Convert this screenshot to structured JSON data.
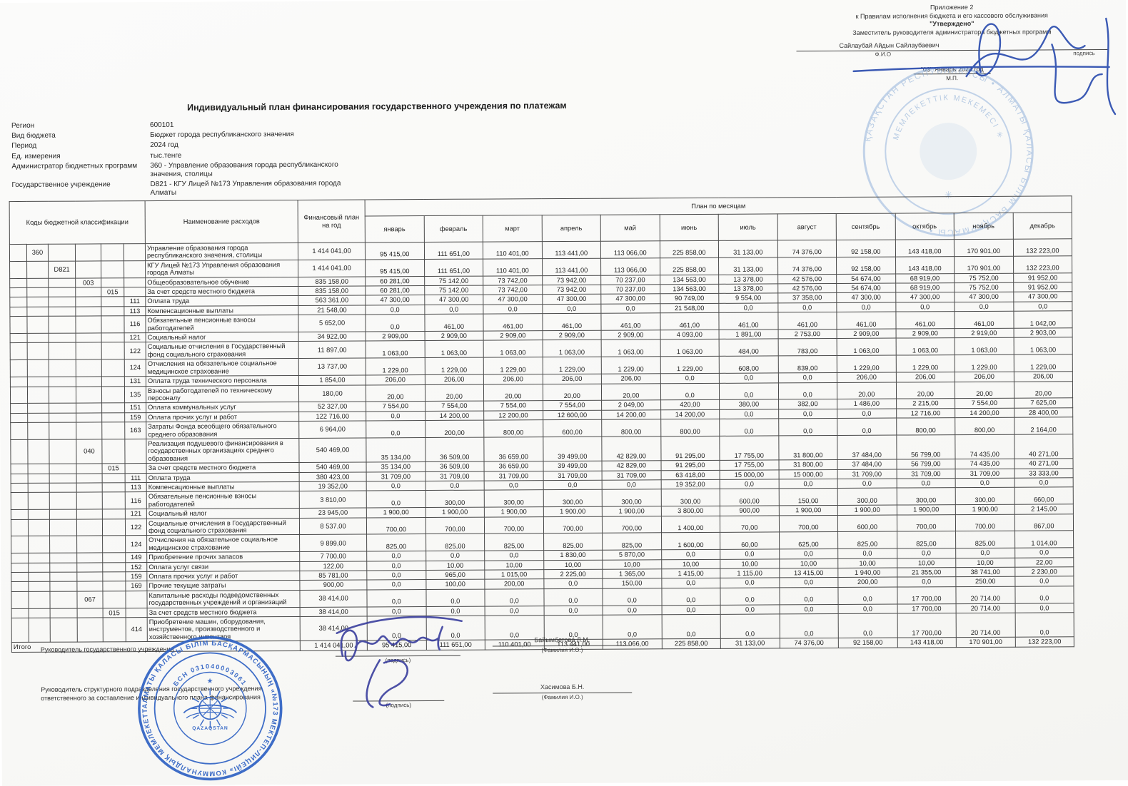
{
  "approval": {
    "appendix_line1": "Приложение 2",
    "appendix_line2": "к Правилам исполнения бюджета и его кассового обслуживания",
    "approved": "\"Утверждено\"",
    "approver_title": "Заместитель руководителя администратора бюджетных программ",
    "approver_name": "Сайлаубай Айдын Сайлаубаевич",
    "fio_caption": "Ф.И.О",
    "sign_caption": "подпись",
    "date_line": "\"03\"  Январь   2024 год",
    "mp": "М.П."
  },
  "title": "Индивидуальный план финансирования государственного учреждения по платежам",
  "meta": {
    "rows": [
      {
        "label": "Регион",
        "value": "600101"
      },
      {
        "label": "Вид бюджета",
        "value": "Бюджет города республиканского значения"
      },
      {
        "label": "Период",
        "value": "2024 год"
      },
      {
        "label": "Ед. измерения",
        "value": "тыс.тенге"
      },
      {
        "label": "Администратор бюджетных программ",
        "value": "360 - Управление образования города республиканского значения, столицы"
      },
      {
        "label": "Государственное учреждение",
        "value": "D821 - КГУ Лицей №173 Управления образования города Алматы"
      }
    ]
  },
  "table": {
    "codes_header": "Коды бюджетной классификации",
    "name_header": "Наименование расходов",
    "annual_header": "Финансовый план на год",
    "months_group_header": "План по месяцам",
    "months": [
      "январь",
      "февраль",
      "март",
      "апрель",
      "май",
      "июнь",
      "июль",
      "август",
      "сентябрь",
      "октябрь",
      "ноябрь",
      "декабрь"
    ],
    "rows": [
      {
        "codes": [
          "",
          "360",
          "",
          "",
          "",
          ""
        ],
        "name": "Управление образования города республиканского значения, столицы",
        "annual": "1 414 041,00",
        "monthly": [
          "95 415,00",
          "111 651,00",
          "110 401,00",
          "113 441,00",
          "113 066,00",
          "225 858,00",
          "31 133,00",
          "74 376,00",
          "92 158,00",
          "143 418,00",
          "170 901,00",
          "132 223,00"
        ]
      },
      {
        "codes": [
          "",
          "",
          "D821",
          "",
          "",
          ""
        ],
        "name": "КГУ Лицей №173 Управления образования города Алматы",
        "annual": "1 414 041,00",
        "monthly": [
          "95 415,00",
          "111 651,00",
          "110 401,00",
          "113 441,00",
          "113 066,00",
          "225 858,00",
          "31 133,00",
          "74 376,00",
          "92 158,00",
          "143 418,00",
          "170 901,00",
          "132 223,00"
        ]
      },
      {
        "codes": [
          "",
          "",
          "",
          "003",
          "",
          ""
        ],
        "name": "Общеобразовательное обучение",
        "annual": "835 158,00",
        "monthly": [
          "60 281,00",
          "75 142,00",
          "73 742,00",
          "73 942,00",
          "70 237,00",
          "134 563,00",
          "13 378,00",
          "42 576,00",
          "54 674,00",
          "68 919,00",
          "75 752,00",
          "91 952,00"
        ]
      },
      {
        "codes": [
          "",
          "",
          "",
          "",
          "015",
          ""
        ],
        "name": "За счет средств местного бюджета",
        "annual": "835 158,00",
        "monthly": [
          "60 281,00",
          "75 142,00",
          "73 742,00",
          "73 942,00",
          "70 237,00",
          "134 563,00",
          "13 378,00",
          "42 576,00",
          "54 674,00",
          "68 919,00",
          "75 752,00",
          "91 952,00"
        ]
      },
      {
        "codes": [
          "",
          "",
          "",
          "",
          "",
          "111"
        ],
        "name": "Оплата труда",
        "annual": "563 361,00",
        "monthly": [
          "47 300,00",
          "47 300,00",
          "47 300,00",
          "47 300,00",
          "47 300,00",
          "90 749,00",
          "9 554,00",
          "37 358,00",
          "47 300,00",
          "47 300,00",
          "47 300,00",
          "47 300,00"
        ]
      },
      {
        "codes": [
          "",
          "",
          "",
          "",
          "",
          "113"
        ],
        "name": "Компенсационные выплаты",
        "annual": "21 548,00",
        "monthly": [
          "0,0",
          "0,0",
          "0,0",
          "0,0",
          "0,0",
          "21 548,00",
          "0,0",
          "0,0",
          "0,0",
          "0,0",
          "0,0",
          "0,0"
        ]
      },
      {
        "codes": [
          "",
          "",
          "",
          "",
          "",
          "116"
        ],
        "name": "Обязательные пенсионные взносы работодателей",
        "annual": "5 652,00",
        "monthly": [
          "0,0",
          "461,00",
          "461,00",
          "461,00",
          "461,00",
          "461,00",
          "461,00",
          "461,00",
          "461,00",
          "461,00",
          "461,00",
          "1 042,00"
        ]
      },
      {
        "codes": [
          "",
          "",
          "",
          "",
          "",
          "121"
        ],
        "name": "Социальный налог",
        "annual": "34 922,00",
        "monthly": [
          "2 909,00",
          "2 909,00",
          "2 909,00",
          "2 909,00",
          "2 909,00",
          "4 093,00",
          "1 891,00",
          "2 753,00",
          "2 909,00",
          "2 909,00",
          "2 919,00",
          "2 903,00"
        ]
      },
      {
        "codes": [
          "",
          "",
          "",
          "",
          "",
          "122"
        ],
        "name": "Социальные отчисления в Государственный фонд социального страхования",
        "annual": "11 897,00",
        "monthly": [
          "1 063,00",
          "1 063,00",
          "1 063,00",
          "1 063,00",
          "1 063,00",
          "1 063,00",
          "484,00",
          "783,00",
          "1 063,00",
          "1 063,00",
          "1 063,00",
          "1 063,00"
        ]
      },
      {
        "codes": [
          "",
          "",
          "",
          "",
          "",
          "124"
        ],
        "name": "Отчисления на обязательное социальное медицинское страхование",
        "annual": "13 737,00",
        "monthly": [
          "1 229,00",
          "1 229,00",
          "1 229,00",
          "1 229,00",
          "1 229,00",
          "1 229,00",
          "608,00",
          "839,00",
          "1 229,00",
          "1 229,00",
          "1 229,00",
          "1 229,00"
        ]
      },
      {
        "codes": [
          "",
          "",
          "",
          "",
          "",
          "131"
        ],
        "name": "Оплата труда технического персонала",
        "annual": "1 854,00",
        "monthly": [
          "206,00",
          "206,00",
          "206,00",
          "206,00",
          "206,00",
          "0,0",
          "0,0",
          "0,0",
          "206,00",
          "206,00",
          "206,00",
          "206,00"
        ]
      },
      {
        "codes": [
          "",
          "",
          "",
          "",
          "",
          "135"
        ],
        "name": "Взносы работодателей по техническому персоналу",
        "annual": "180,00",
        "monthly": [
          "20,00",
          "20,00",
          "20,00",
          "20,00",
          "20,00",
          "0,0",
          "0,0",
          "0,0",
          "20,00",
          "20,00",
          "20,00",
          "20,00"
        ]
      },
      {
        "codes": [
          "",
          "",
          "",
          "",
          "",
          "151"
        ],
        "name": "Оплата коммунальных услуг",
        "annual": "52 327,00",
        "monthly": [
          "7 554,00",
          "7 554,00",
          "7 554,00",
          "7 554,00",
          "2 049,00",
          "420,00",
          "380,00",
          "382,00",
          "1 486,00",
          "2 215,00",
          "7 554,00",
          "7 625,00"
        ]
      },
      {
        "codes": [
          "",
          "",
          "",
          "",
          "",
          "159"
        ],
        "name": "Оплата прочих услуг и работ",
        "annual": "122 716,00",
        "monthly": [
          "0,0",
          "14 200,00",
          "12 200,00",
          "12 600,00",
          "14 200,00",
          "14 200,00",
          "0,0",
          "0,0",
          "0,0",
          "12 716,00",
          "14 200,00",
          "28 400,00"
        ]
      },
      {
        "codes": [
          "",
          "",
          "",
          "",
          "",
          "163"
        ],
        "name": "Затраты Фонда всеобщего обязательного среднего образования",
        "annual": "6 964,00",
        "monthly": [
          "0,0",
          "200,00",
          "800,00",
          "600,00",
          "800,00",
          "800,00",
          "0,0",
          "0,0",
          "0,0",
          "800,00",
          "800,00",
          "2 164,00"
        ]
      },
      {
        "codes": [
          "",
          "",
          "",
          "040",
          "",
          ""
        ],
        "name": "Реализация  подушевого финансирования в государственных организациях среднего образования",
        "annual": "540 469,00",
        "monthly": [
          "35 134,00",
          "36 509,00",
          "36 659,00",
          "39 499,00",
          "42 829,00",
          "91 295,00",
          "17 755,00",
          "31 800,00",
          "37 484,00",
          "56 799,00",
          "74 435,00",
          "40 271,00"
        ]
      },
      {
        "codes": [
          "",
          "",
          "",
          "",
          "015",
          ""
        ],
        "name": "За счет средств местного бюджета",
        "annual": "540 469,00",
        "monthly": [
          "35 134,00",
          "36 509,00",
          "36 659,00",
          "39 499,00",
          "42 829,00",
          "91 295,00",
          "17 755,00",
          "31 800,00",
          "37 484,00",
          "56 799,00",
          "74 435,00",
          "40 271,00"
        ]
      },
      {
        "codes": [
          "",
          "",
          "",
          "",
          "",
          "111"
        ],
        "name": "Оплата труда",
        "annual": "380 423,00",
        "monthly": [
          "31 709,00",
          "31 709,00",
          "31 709,00",
          "31 709,00",
          "31 709,00",
          "63 418,00",
          "15 000,00",
          "15 000,00",
          "31 709,00",
          "31 709,00",
          "31 709,00",
          "33 333,00"
        ]
      },
      {
        "codes": [
          "",
          "",
          "",
          "",
          "",
          "113"
        ],
        "name": "Компенсационные выплаты",
        "annual": "19 352,00",
        "monthly": [
          "0,0",
          "0,0",
          "0,0",
          "0,0",
          "0,0",
          "19 352,00",
          "0,0",
          "0,0",
          "0,0",
          "0,0",
          "0,0",
          "0,0"
        ]
      },
      {
        "codes": [
          "",
          "",
          "",
          "",
          "",
          "116"
        ],
        "name": "Обязательные пенсионные взносы работодателей",
        "annual": "3 810,00",
        "monthly": [
          "0,0",
          "300,00",
          "300,00",
          "300,00",
          "300,00",
          "300,00",
          "600,00",
          "150,00",
          "300,00",
          "300,00",
          "300,00",
          "660,00"
        ]
      },
      {
        "codes": [
          "",
          "",
          "",
          "",
          "",
          "121"
        ],
        "name": "Социальный налог",
        "annual": "23 945,00",
        "monthly": [
          "1 900,00",
          "1 900,00",
          "1 900,00",
          "1 900,00",
          "1 900,00",
          "3 800,00",
          "900,00",
          "1 900,00",
          "1 900,00",
          "1 900,00",
          "1 900,00",
          "2 145,00"
        ]
      },
      {
        "codes": [
          "",
          "",
          "",
          "",
          "",
          "122"
        ],
        "name": "Социальные отчисления в Государственный фонд социального страхования",
        "annual": "8 537,00",
        "monthly": [
          "700,00",
          "700,00",
          "700,00",
          "700,00",
          "700,00",
          "1 400,00",
          "70,00",
          "700,00",
          "600,00",
          "700,00",
          "700,00",
          "867,00"
        ]
      },
      {
        "codes": [
          "",
          "",
          "",
          "",
          "",
          "124"
        ],
        "name": "Отчисления на обязательное социальное медицинское страхование",
        "annual": "9 899,00",
        "monthly": [
          "825,00",
          "825,00",
          "825,00",
          "825,00",
          "825,00",
          "1 600,00",
          "60,00",
          "625,00",
          "825,00",
          "825,00",
          "825,00",
          "1 014,00"
        ]
      },
      {
        "codes": [
          "",
          "",
          "",
          "",
          "",
          "149"
        ],
        "name": "Приобретение прочих запасов",
        "annual": "7 700,00",
        "monthly": [
          "0,0",
          "0,0",
          "0,0",
          "1 830,00",
          "5 870,00",
          "0,0",
          "0,0",
          "0,0",
          "0,0",
          "0,0",
          "0,0",
          "0,0"
        ]
      },
      {
        "codes": [
          "",
          "",
          "",
          "",
          "",
          "152"
        ],
        "name": "Оплата услуг связи",
        "annual": "122,00",
        "monthly": [
          "0,0",
          "10,00",
          "10,00",
          "10,00",
          "10,00",
          "10,00",
          "10,00",
          "10,00",
          "10,00",
          "10,00",
          "10,00",
          "22,00"
        ]
      },
      {
        "codes": [
          "",
          "",
          "",
          "",
          "",
          "159"
        ],
        "name": "Оплата прочих услуг и работ",
        "annual": "85 781,00",
        "monthly": [
          "0,0",
          "965,00",
          "1 015,00",
          "2 225,00",
          "1 365,00",
          "1 415,00",
          "1 115,00",
          "13 415,00",
          "1 940,00",
          "21 355,00",
          "38 741,00",
          "2 230,00"
        ]
      },
      {
        "codes": [
          "",
          "",
          "",
          "",
          "",
          "169"
        ],
        "name": "Прочие текущие затраты",
        "annual": "900,00",
        "monthly": [
          "0,0",
          "100,00",
          "200,00",
          "0,0",
          "150,00",
          "0,0",
          "0,0",
          "0,0",
          "200,00",
          "0,0",
          "250,00",
          "0,0"
        ]
      },
      {
        "codes": [
          "",
          "",
          "",
          "067",
          "",
          ""
        ],
        "name": "Капитальные расходы подведомственных государственных учреждений и организаций",
        "annual": "38 414,00",
        "monthly": [
          "0,0",
          "0,0",
          "0,0",
          "0,0",
          "0,0",
          "0,0",
          "0,0",
          "0,0",
          "0,0",
          "17 700,00",
          "20 714,00",
          "0,0"
        ]
      },
      {
        "codes": [
          "",
          "",
          "",
          "",
          "015",
          ""
        ],
        "name": "За счет средств местного бюджета",
        "annual": "38 414,00",
        "monthly": [
          "0,0",
          "0,0",
          "0,0",
          "0,0",
          "0,0",
          "0,0",
          "0,0",
          "0,0",
          "0,0",
          "17 700,00",
          "20 714,00",
          "0,0"
        ]
      },
      {
        "codes": [
          "",
          "",
          "",
          "",
          "",
          "414"
        ],
        "name": "Приобретение машин, оборудования, инструментов, производственного и хозяйственного инвентаря",
        "annual": "38 414,00",
        "monthly": [
          "0,0",
          "0,0",
          "0,0",
          "0,0",
          "0,0",
          "0,0",
          "0,0",
          "0,0",
          "0,0",
          "17 700,00",
          "20 714,00",
          "0,0"
        ]
      }
    ],
    "total": {
      "label": "Итого",
      "annual": "1 414 041,00",
      "monthly": [
        "95 415,00",
        "111 651,00",
        "110 401,00",
        "113 441,00",
        "113 066,00",
        "225 858,00",
        "31 133,00",
        "74 376,00",
        "92 158,00",
        "143 418,00",
        "170 901,00",
        "132 223,00"
      ]
    }
  },
  "footer": {
    "signatories": [
      {
        "role": "Руководитель государственного учреждения",
        "signature_caption": "(подпись)",
        "name": "Байымбетова Л.М.",
        "name_caption": "(Фамилия И.О.)"
      },
      {
        "role": "Руководитель структурного подразделения государственного учреждения, ответственного за составление индивидуального плана финансирования",
        "signature_caption": "(подпись)",
        "name": "Хасимова Б.Н.",
        "name_caption": "(Фамилия И.О.)"
      }
    ]
  },
  "stamps": {
    "top_right": {
      "outer_text": "ҚАЗАҚСТАН РЕСПУБЛИКАСЫ • АЛМАТЫ ҚАЛАСЫ БІЛІМ БАСҚАРМАСЫ •",
      "inner_text": "МЕМЛЕКЕТТІК МЕКЕМЕСІ ✳"
    },
    "bottom_left": {
      "outer_text": "АЛМАТЫ ҚАЛАСЫ БІЛІМ БАСҚАРМАСЫНЫҢ «№173 МЕКТЕП-ЛИЦЕЙІ» КОММУНАЛДЫҚ МЕМЛЕКЕТТІК МЕКЕМЕСІ ✳",
      "bsn_text": "БСН 031040003061",
      "emblem_text": "QAZAQSTAN"
    }
  },
  "colors": {
    "stamp_blue": "#2f62c4",
    "stamp_faint": "#8badda",
    "ink_blue": "#2b4cae"
  }
}
